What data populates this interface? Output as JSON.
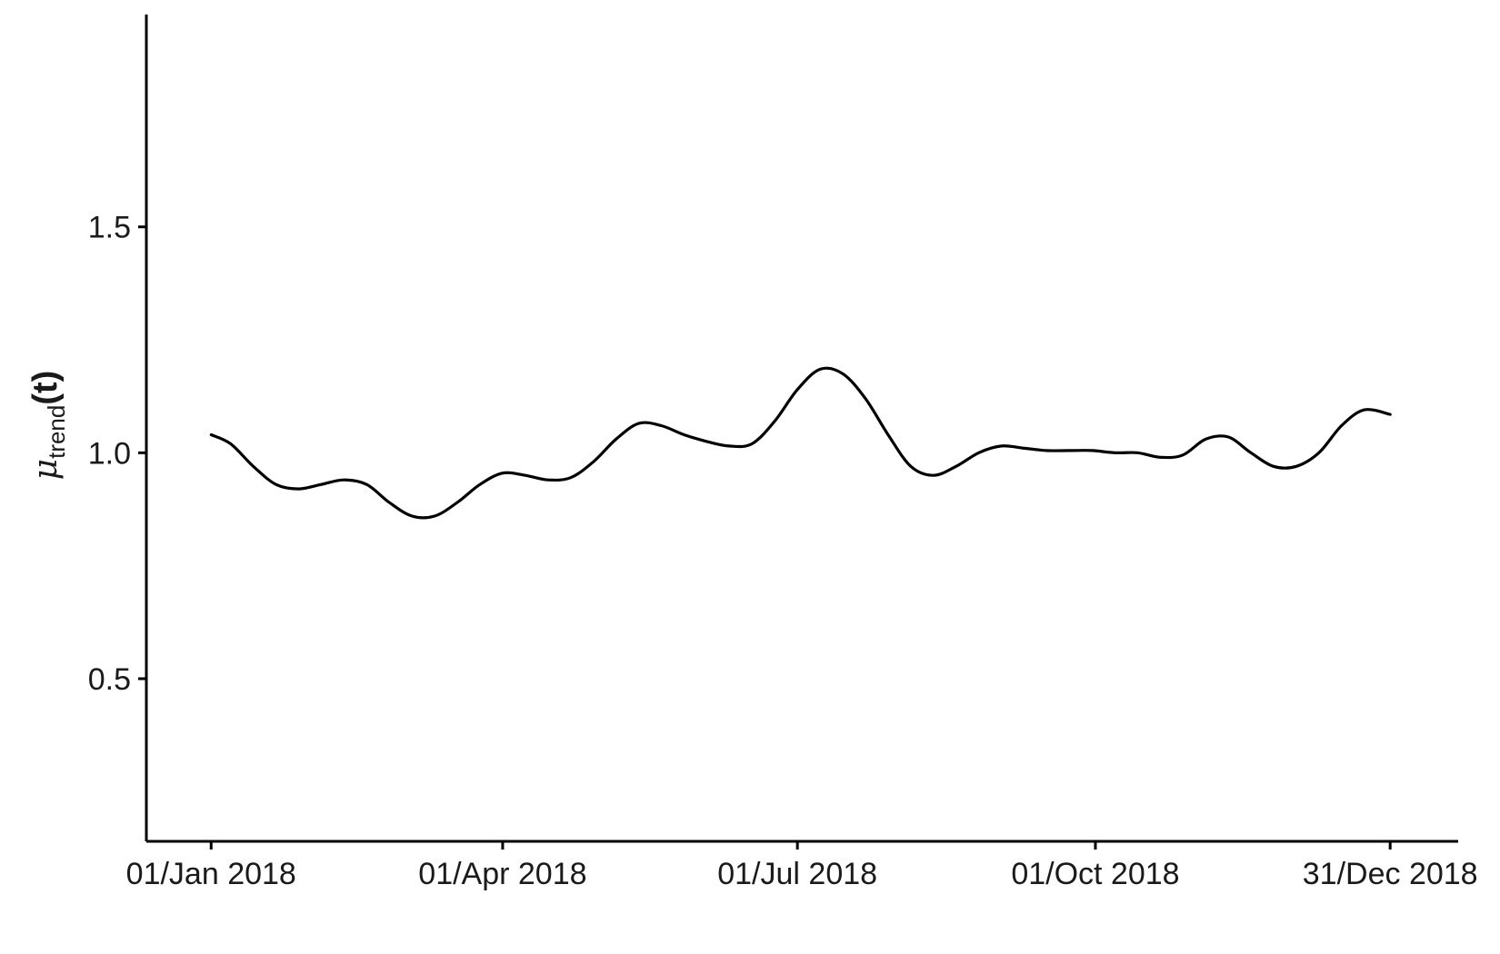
{
  "chart_data": {
    "type": "line",
    "title": "",
    "xlabel": "",
    "ylabel": {
      "base": "μ",
      "subscript": "trend",
      "argument": "(t)"
    },
    "x_ticks": [
      "01/Jan 2018",
      "01/Apr 2018",
      "01/Jul 2018",
      "01/Oct 2018",
      "31/Dec 2018"
    ],
    "y_ticks": [
      0.5,
      1.0,
      1.5
    ],
    "y_tick_labels": [
      "0.5",
      "1.0",
      "1.5"
    ],
    "xlim": [
      "2017-12-12",
      "2019-01-21"
    ],
    "ylim": [
      0.14,
      1.97
    ],
    "grid": false,
    "legend": "none",
    "line_color": "#000000",
    "series": [
      {
        "x": [
          "2018-01-01",
          "2018-01-07",
          "2018-01-14",
          "2018-01-21",
          "2018-01-28",
          "2018-02-04",
          "2018-02-11",
          "2018-02-18",
          "2018-02-25",
          "2018-03-04",
          "2018-03-11",
          "2018-03-18",
          "2018-03-25",
          "2018-04-01",
          "2018-04-08",
          "2018-04-15",
          "2018-04-22",
          "2018-04-29",
          "2018-05-06",
          "2018-05-13",
          "2018-05-20",
          "2018-05-27",
          "2018-06-03",
          "2018-06-10",
          "2018-06-17",
          "2018-06-24",
          "2018-07-01",
          "2018-07-08",
          "2018-07-15",
          "2018-07-22",
          "2018-07-29",
          "2018-08-05",
          "2018-08-12",
          "2018-08-19",
          "2018-08-26",
          "2018-09-02",
          "2018-09-09",
          "2018-09-16",
          "2018-09-23",
          "2018-09-30",
          "2018-10-07",
          "2018-10-14",
          "2018-10-21",
          "2018-10-28",
          "2018-11-04",
          "2018-11-11",
          "2018-11-18",
          "2018-11-25",
          "2018-12-02",
          "2018-12-09",
          "2018-12-16",
          "2018-12-23",
          "2018-12-31"
        ],
        "y": [
          1.04,
          1.02,
          0.97,
          0.93,
          0.92,
          0.93,
          0.94,
          0.93,
          0.89,
          0.86,
          0.86,
          0.89,
          0.93,
          0.955,
          0.95,
          0.94,
          0.945,
          0.98,
          1.03,
          1.065,
          1.06,
          1.04,
          1.025,
          1.015,
          1.02,
          1.07,
          1.14,
          1.185,
          1.175,
          1.12,
          1.04,
          0.97,
          0.95,
          0.97,
          1.0,
          1.015,
          1.01,
          1.005,
          1.005,
          1.005,
          1.0,
          1.0,
          0.99,
          0.995,
          1.03,
          1.035,
          1.0,
          0.97,
          0.97,
          1.0,
          1.06,
          1.095,
          1.085
        ]
      }
    ]
  }
}
